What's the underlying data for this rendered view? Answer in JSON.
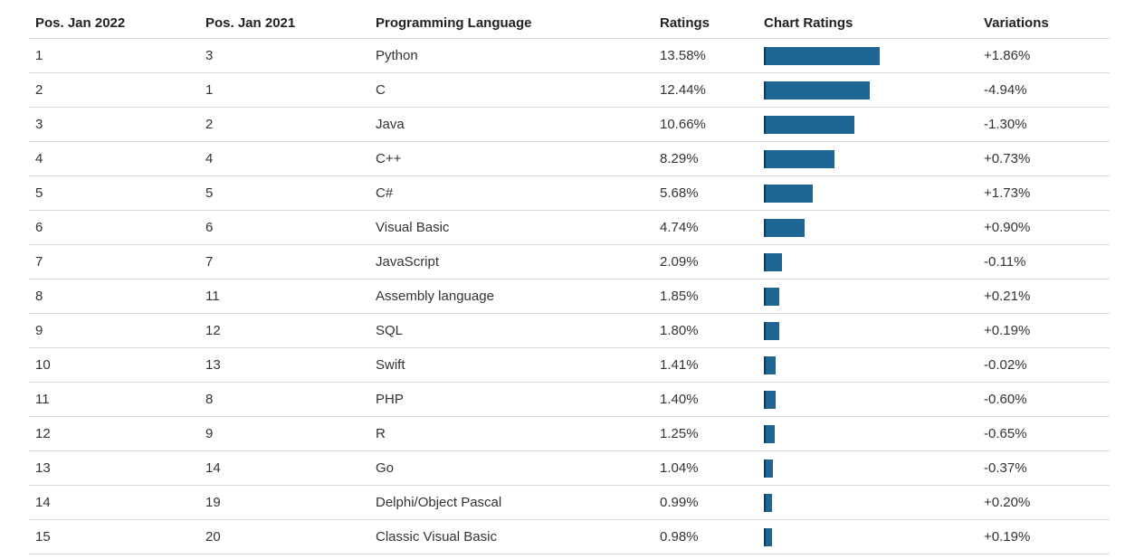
{
  "table": {
    "headers": {
      "pos_2022": "Pos. Jan 2022",
      "pos_2021": "Pos. Jan 2021",
      "language": "Programming Language",
      "ratings": "Ratings",
      "chart": "Chart Ratings",
      "variations": "Variations"
    },
    "rows": [
      {
        "pos_2022": "1",
        "pos_2021": "3",
        "language": "Python",
        "ratings": "13.58%",
        "rating_value": 13.58,
        "variation": "+1.86%"
      },
      {
        "pos_2022": "2",
        "pos_2021": "1",
        "language": "C",
        "ratings": "12.44%",
        "rating_value": 12.44,
        "variation": "-4.94%"
      },
      {
        "pos_2022": "3",
        "pos_2021": "2",
        "language": "Java",
        "ratings": "10.66%",
        "rating_value": 10.66,
        "variation": "-1.30%"
      },
      {
        "pos_2022": "4",
        "pos_2021": "4",
        "language": "C++",
        "ratings": "8.29%",
        "rating_value": 8.29,
        "variation": "+0.73%"
      },
      {
        "pos_2022": "5",
        "pos_2021": "5",
        "language": "C#",
        "ratings": "5.68%",
        "rating_value": 5.68,
        "variation": "+1.73%"
      },
      {
        "pos_2022": "6",
        "pos_2021": "6",
        "language": "Visual Basic",
        "ratings": "4.74%",
        "rating_value": 4.74,
        "variation": "+0.90%"
      },
      {
        "pos_2022": "7",
        "pos_2021": "7",
        "language": "JavaScript",
        "ratings": "2.09%",
        "rating_value": 2.09,
        "variation": "-0.11%"
      },
      {
        "pos_2022": "8",
        "pos_2021": "11",
        "language": "Assembly language",
        "ratings": "1.85%",
        "rating_value": 1.85,
        "variation": "+0.21%"
      },
      {
        "pos_2022": "9",
        "pos_2021": "12",
        "language": "SQL",
        "ratings": "1.80%",
        "rating_value": 1.8,
        "variation": "+0.19%"
      },
      {
        "pos_2022": "10",
        "pos_2021": "13",
        "language": "Swift",
        "ratings": "1.41%",
        "rating_value": 1.41,
        "variation": "-0.02%"
      },
      {
        "pos_2022": "11",
        "pos_2021": "8",
        "language": "PHP",
        "ratings": "1.40%",
        "rating_value": 1.4,
        "variation": "-0.60%"
      },
      {
        "pos_2022": "12",
        "pos_2021": "9",
        "language": "R",
        "ratings": "1.25%",
        "rating_value": 1.25,
        "variation": "-0.65%"
      },
      {
        "pos_2022": "13",
        "pos_2021": "14",
        "language": "Go",
        "ratings": "1.04%",
        "rating_value": 1.04,
        "variation": "-0.37%"
      },
      {
        "pos_2022": "14",
        "pos_2021": "19",
        "language": "Delphi/Object Pascal",
        "ratings": "0.99%",
        "rating_value": 0.99,
        "variation": "+0.20%"
      },
      {
        "pos_2022": "15",
        "pos_2021": "20",
        "language": "Classic Visual Basic",
        "ratings": "0.98%",
        "rating_value": 0.98,
        "variation": "+0.19%"
      }
    ]
  },
  "colors": {
    "bar": "#1f6593",
    "bar_edge": "#123a55",
    "row_border": "#d8d8d8"
  }
}
